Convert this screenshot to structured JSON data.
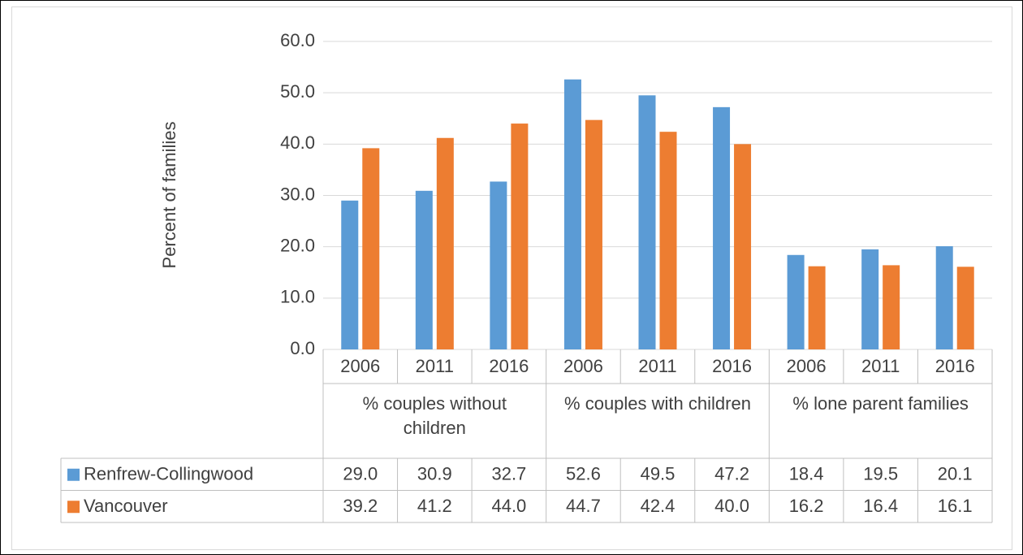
{
  "chart_data": {
    "type": "bar",
    "y_axis_title": "Percent of families",
    "categories": [
      "2006",
      "2011",
      "2016",
      "2006",
      "2011",
      "2016",
      "2006",
      "2011",
      "2016"
    ],
    "groups": [
      "% couples without children",
      "% couples with children",
      "% lone parent families"
    ],
    "series": [
      {
        "name": "Renfrew-Collingwood",
        "color": "#5b9bd5",
        "values": [
          29.0,
          30.9,
          32.7,
          52.6,
          49.5,
          47.2,
          18.4,
          19.5,
          20.1
        ],
        "value_labels": [
          "29.0",
          "30.9",
          "32.7",
          "52.6",
          "49.5",
          "47.2",
          "18.4",
          "19.5",
          "20.1"
        ]
      },
      {
        "name": "Vancouver",
        "color": "#ed7d31",
        "values": [
          39.2,
          41.2,
          44.0,
          44.7,
          42.4,
          40.0,
          16.2,
          16.4,
          16.1
        ],
        "value_labels": [
          "39.2",
          "41.2",
          "44.0",
          "44.7",
          "42.4",
          "40.0",
          "16.2",
          "16.4",
          "16.1"
        ]
      }
    ],
    "ylim": [
      0,
      60
    ],
    "yticks": [
      {
        "value": 0,
        "label": "0.0"
      },
      {
        "value": 10,
        "label": "10.0"
      },
      {
        "value": 20,
        "label": "20.0"
      },
      {
        "value": 30,
        "label": "30.0"
      },
      {
        "value": 40,
        "label": "40.0"
      },
      {
        "value": 50,
        "label": "50.0"
      },
      {
        "value": 60,
        "label": "60.0"
      }
    ],
    "grid": true,
    "data_table": true
  }
}
